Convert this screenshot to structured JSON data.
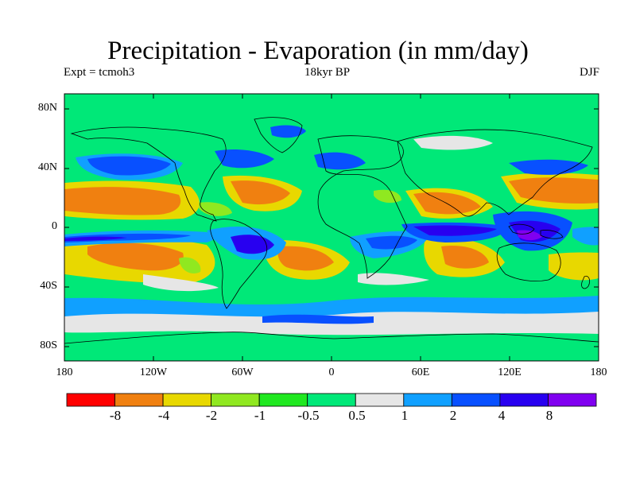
{
  "figure": {
    "title": "Precipitation - Evaporation (in mm/day)",
    "experiment": "Expt = tcmoh3",
    "period": "18kyr BP",
    "season": "DJF"
  },
  "axes": {
    "lat_labels": [
      "80N",
      "40N",
      "0",
      "40S",
      "80S"
    ],
    "lon_labels": [
      "180",
      "120W",
      "60W",
      "0",
      "60E",
      "120E",
      "180"
    ]
  },
  "colorbar": {
    "labels": [
      "-8",
      "-4",
      "-2",
      "-1",
      "-0.5",
      "0.5",
      "1",
      "2",
      "4",
      "8"
    ],
    "colors": [
      "#ff0000",
      "#f08010",
      "#e8d800",
      "#90e820",
      "#20e820",
      "#00e878",
      "#e6e6e6",
      "#10a0ff",
      "#0850ff",
      "#2800f0",
      "#8000f0"
    ]
  },
  "background_class": "0.5"
}
